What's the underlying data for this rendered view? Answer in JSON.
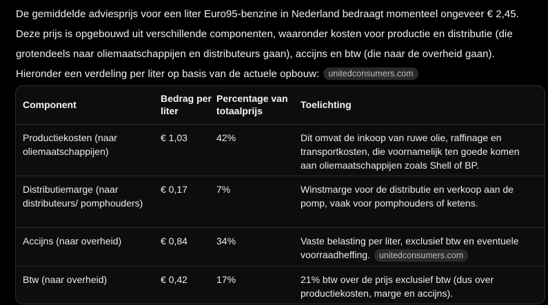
{
  "intro": {
    "text": "De gemiddelde adviesprijs voor een liter Euro95-benzine in Nederland bedraagt momenteel ongeveer € 2,45. Deze prijs is opgebouwd uit verschillende componenten, waaronder kosten voor productie en distributie (die grotendeels naar oliemaatschappijen en distributeurs gaan), accijns en btw (die naar de overheid gaan). Hieronder een verdeling per liter op basis van de actuele opbouw:",
    "citation": "unitedconsumers.com"
  },
  "table": {
    "headers": {
      "component": "Component",
      "amount": "Bedrag per liter",
      "percentage": "Percentage van totaalprijs",
      "explanation": "Toelichting"
    },
    "rows": [
      {
        "component": "Productiekosten (naar oliemaatschappijen)",
        "amount": "€ 1,03",
        "percentage": "42%",
        "explanation": "Dit omvat de inkoop van ruwe olie, raffinage en transportkosten, die voornamelijk ten goede komen aan oliemaatschappijen zoals Shell of BP.",
        "citation": ""
      },
      {
        "component": "Distributiemarge (naar distributeurs/ pomphouders)",
        "amount": "€ 0,17",
        "percentage": "7%",
        "explanation": "Winstmarge voor de distributie en verkoop aan de pomp, vaak voor pomphouders of ketens.",
        "citation": ""
      },
      {
        "component": "Accijns (naar overheid)",
        "amount": "€ 0,84",
        "percentage": "34%",
        "explanation": "Vaste belasting per liter, exclusief btw en eventuele voorraadheffing.",
        "citation": "unitedconsumers.com"
      },
      {
        "component": "Btw (naar overheid)",
        "amount": "€ 0,42",
        "percentage": "17%",
        "explanation": "21% btw over de prijs exclusief btw (dus over productiekosten, marge en accijns).",
        "citation": ""
      }
    ]
  }
}
